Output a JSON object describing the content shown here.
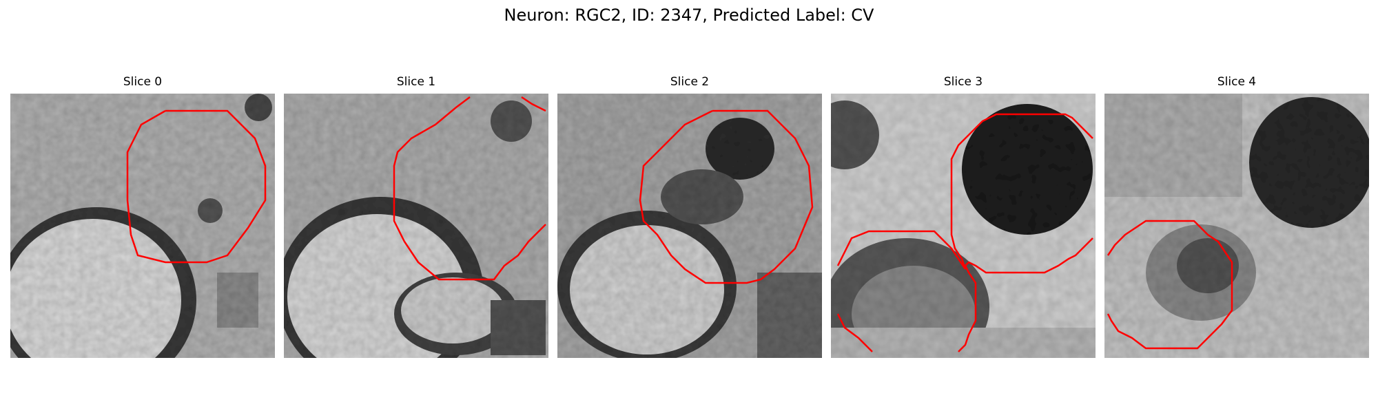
{
  "figure": {
    "title": "Neuron: RGC2, ID: 2347, Predicted Label: CV"
  },
  "panels": [
    {
      "title": "Slice 0"
    },
    {
      "title": "Slice 1"
    },
    {
      "title": "Slice 2"
    },
    {
      "title": "Slice 3"
    },
    {
      "title": "Slice 4"
    }
  ],
  "colors": {
    "contour": "#ff0000",
    "background": "#ffffff"
  }
}
